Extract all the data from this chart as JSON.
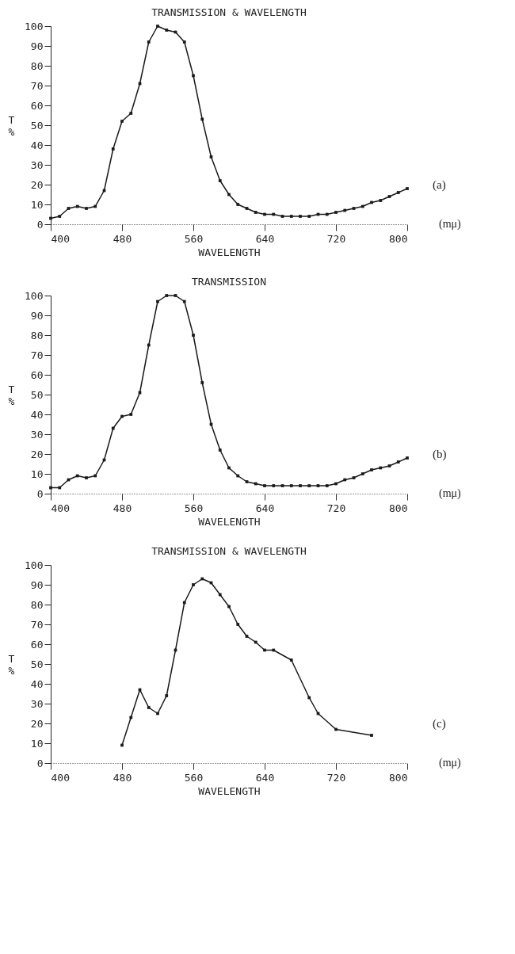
{
  "chart_data": [
    {
      "type": "line",
      "title": "TRANSMISSION & WAVELENGTH",
      "xlabel": "WAVELENGTH",
      "ylabel": "T %",
      "color": "#1a1a1a",
      "marker": "square",
      "line_style": "solid",
      "grid": false,
      "x": [
        400,
        410,
        420,
        430,
        440,
        450,
        460,
        470,
        480,
        490,
        500,
        510,
        520,
        530,
        540,
        550,
        560,
        570,
        580,
        590,
        600,
        610,
        620,
        630,
        640,
        650,
        660,
        670,
        680,
        690,
        700,
        710,
        720,
        730,
        740,
        750,
        760,
        770,
        780,
        790,
        800
      ],
      "values": [
        3,
        4,
        8,
        9,
        8,
        9,
        17,
        38,
        52,
        56,
        71,
        92,
        100,
        98,
        97,
        92,
        75,
        53,
        34,
        22,
        15,
        10,
        8,
        6,
        5,
        5,
        4,
        4,
        4,
        4,
        5,
        5,
        6,
        7,
        8,
        9,
        11,
        12,
        14,
        16,
        18
      ],
      "xlim": [
        400,
        800
      ],
      "xticks": [
        400,
        480,
        560,
        640,
        720,
        800
      ],
      "ylim": [
        0,
        100
      ],
      "yticks": [
        0,
        10,
        20,
        30,
        40,
        50,
        60,
        70,
        80,
        90,
        100
      ],
      "annotations": [
        "(a)",
        "(mμ)"
      ]
    },
    {
      "type": "line",
      "title": "TRANSMISSION",
      "xlabel": "WAVELENGTH",
      "ylabel": "T %",
      "color": "#1a1a1a",
      "marker": "square",
      "line_style": "solid",
      "grid": false,
      "x": [
        400,
        410,
        420,
        430,
        440,
        450,
        460,
        470,
        480,
        490,
        500,
        510,
        520,
        530,
        540,
        550,
        560,
        570,
        580,
        590,
        600,
        610,
        620,
        630,
        640,
        650,
        660,
        670,
        680,
        690,
        700,
        710,
        720,
        730,
        740,
        750,
        760,
        770,
        780,
        790,
        800
      ],
      "values": [
        3,
        3,
        7,
        9,
        8,
        9,
        17,
        33,
        39,
        40,
        51,
        75,
        97,
        100,
        100,
        97,
        80,
        56,
        35,
        22,
        13,
        9,
        6,
        5,
        4,
        4,
        4,
        4,
        4,
        4,
        4,
        4,
        5,
        7,
        8,
        10,
        12,
        13,
        14,
        16,
        18
      ],
      "xlim": [
        400,
        800
      ],
      "xticks": [
        400,
        480,
        560,
        640,
        720,
        800
      ],
      "ylim": [
        0,
        100
      ],
      "yticks": [
        0,
        10,
        20,
        30,
        40,
        50,
        60,
        70,
        80,
        90,
        100
      ],
      "annotations": [
        "(b)",
        "(mμ)"
      ]
    },
    {
      "type": "line",
      "title": "TRANSMISSION & WAVELENGTH",
      "xlabel": "WAVELENGTH",
      "ylabel": "T %",
      "color": "#1a1a1a",
      "marker": "square",
      "line_style": "solid",
      "grid": false,
      "x": [
        480,
        490,
        500,
        510,
        520,
        530,
        540,
        550,
        560,
        570,
        580,
        590,
        600,
        610,
        620,
        630,
        640,
        650,
        670,
        690,
        700,
        720,
        760
      ],
      "values": [
        9,
        23,
        37,
        28,
        25,
        34,
        57,
        81,
        90,
        93,
        91,
        85,
        79,
        70,
        64,
        61,
        57,
        57,
        52,
        33,
        25,
        17,
        14
      ],
      "xlim": [
        400,
        800
      ],
      "xticks": [
        400,
        480,
        560,
        640,
        720,
        800
      ],
      "ylim": [
        0,
        100
      ],
      "yticks": [
        0,
        10,
        20,
        30,
        40,
        50,
        60,
        70,
        80,
        90,
        100
      ],
      "annotations": [
        "(c)",
        "(mμ)"
      ]
    }
  ]
}
